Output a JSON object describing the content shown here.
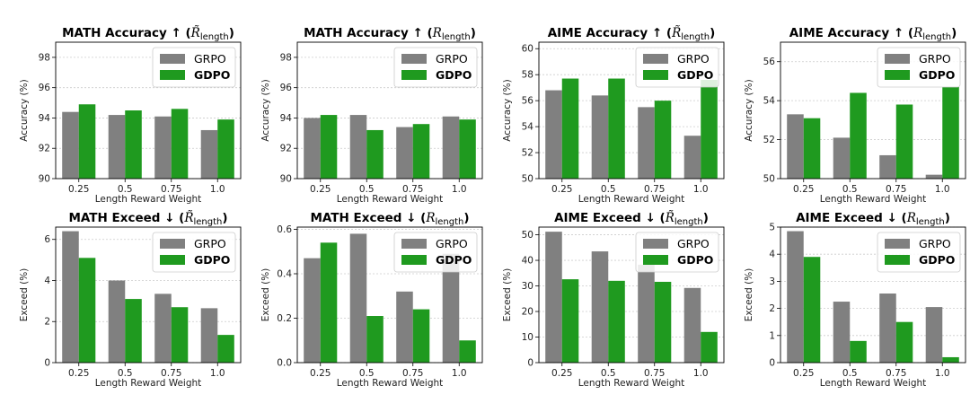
{
  "chart_data": [
    {
      "type": "bar",
      "title": "MATH Accuracy ↑",
      "title_metric": "R̃",
      "title_subscript": "length",
      "xlabel": "Length Reward Weight",
      "ylabel": "Accuracy (%)",
      "categories": [
        "0.25",
        "0.5",
        "0.75",
        "1.0"
      ],
      "ylim": [
        90,
        99
      ],
      "yticks": [
        90,
        92,
        94,
        96,
        98
      ],
      "series": [
        {
          "name": "GRPO",
          "values": [
            94.4,
            94.2,
            94.1,
            93.2
          ]
        },
        {
          "name": "GDPO",
          "values": [
            94.9,
            94.5,
            94.6,
            93.9
          ]
        }
      ],
      "legend": "top-right",
      "grid": "y"
    },
    {
      "type": "bar",
      "title": "MATH Accuracy ↑",
      "title_metric": "R",
      "title_subscript": "length",
      "xlabel": "Length Reward Weight",
      "ylabel": "Accuracy (%)",
      "categories": [
        "0.25",
        "0.5",
        "0.75",
        "1.0"
      ],
      "ylim": [
        90,
        99
      ],
      "yticks": [
        90,
        92,
        94,
        96,
        98
      ],
      "series": [
        {
          "name": "GRPO",
          "values": [
            94.0,
            94.2,
            93.4,
            94.1
          ]
        },
        {
          "name": "GDPO",
          "values": [
            94.2,
            93.2,
            93.6,
            93.9
          ]
        }
      ],
      "legend": "top-right",
      "grid": "y"
    },
    {
      "type": "bar",
      "title": "AIME Accuracy ↑",
      "title_metric": "R̃",
      "title_subscript": "length",
      "xlabel": "Length Reward Weight",
      "ylabel": "Accuracy (%)",
      "categories": [
        "0.25",
        "0.5",
        "0.75",
        "1.0"
      ],
      "ylim": [
        50,
        60.5
      ],
      "yticks": [
        50,
        52,
        54,
        56,
        58,
        60
      ],
      "series": [
        {
          "name": "GRPO",
          "values": [
            56.8,
            56.4,
            55.5,
            53.3
          ]
        },
        {
          "name": "GDPO",
          "values": [
            57.7,
            57.7,
            56.0,
            57.6
          ]
        }
      ],
      "legend": "top-right",
      "grid": "y"
    },
    {
      "type": "bar",
      "title": "AIME Accuracy ↑",
      "title_metric": "R",
      "title_subscript": "length",
      "xlabel": "Length Reward Weight",
      "ylabel": "Accuracy (%)",
      "categories": [
        "0.25",
        "0.5",
        "0.75",
        "1.0"
      ],
      "ylim": [
        50,
        57
      ],
      "yticks": [
        50,
        52,
        54,
        56
      ],
      "series": [
        {
          "name": "GRPO",
          "values": [
            53.3,
            52.1,
            51.2,
            50.2
          ]
        },
        {
          "name": "GDPO",
          "values": [
            53.1,
            54.4,
            53.8,
            54.7
          ]
        }
      ],
      "legend": "top-right",
      "grid": "y"
    },
    {
      "type": "bar",
      "title": "MATH Exceed ↓",
      "title_metric": "R̃",
      "title_subscript": "length",
      "xlabel": "Length Reward Weight",
      "ylabel": "Exceed (%)",
      "categories": [
        "0.25",
        "0.5",
        "0.75",
        "1.0"
      ],
      "ylim": [
        0,
        6.6
      ],
      "yticks": [
        0,
        2,
        4,
        6
      ],
      "series": [
        {
          "name": "GRPO",
          "values": [
            6.4,
            4.0,
            3.35,
            2.65
          ]
        },
        {
          "name": "GDPO",
          "values": [
            5.1,
            3.1,
            2.7,
            1.35
          ]
        }
      ],
      "legend": "top-right",
      "grid": "y"
    },
    {
      "type": "bar",
      "title": "MATH Exceed ↓",
      "title_metric": "R",
      "title_subscript": "length",
      "xlabel": "Length Reward Weight",
      "ylabel": "Exceed (%)",
      "categories": [
        "0.25",
        "0.5",
        "0.75",
        "1.0"
      ],
      "ylim": [
        0,
        0.61
      ],
      "yticks": [
        "0.0",
        "0.2",
        "0.4",
        "0.6"
      ],
      "series": [
        {
          "name": "GRPO",
          "values": [
            0.47,
            0.58,
            0.32,
            0.49
          ]
        },
        {
          "name": "GDPO",
          "values": [
            0.54,
            0.21,
            0.24,
            0.1
          ]
        }
      ],
      "legend": "top-right",
      "grid": "y"
    },
    {
      "type": "bar",
      "title": "AIME Exceed ↓",
      "title_metric": "R̃",
      "title_subscript": "length",
      "xlabel": "Length Reward Weight",
      "ylabel": "Exceed (%)",
      "categories": [
        "0.25",
        "0.5",
        "0.75",
        "1.0"
      ],
      "ylim": [
        0,
        53
      ],
      "yticks": [
        0,
        10,
        20,
        30,
        40,
        50
      ],
      "series": [
        {
          "name": "GRPO",
          "values": [
            51.2,
            43.5,
            38.3,
            29.2
          ]
        },
        {
          "name": "GDPO",
          "values": [
            32.6,
            32.0,
            31.6,
            12.0
          ]
        }
      ],
      "legend": "top-right",
      "grid": "y"
    },
    {
      "type": "bar",
      "title": "AIME Exceed ↓",
      "title_metric": "R",
      "title_subscript": "length",
      "xlabel": "Length Reward Weight",
      "ylabel": "Exceed (%)",
      "categories": [
        "0.25",
        "0.5",
        "0.75",
        "1.0"
      ],
      "ylim": [
        0,
        5.0
      ],
      "yticks": [
        0,
        1,
        2,
        3,
        4,
        5
      ],
      "series": [
        {
          "name": "GRPO",
          "values": [
            4.85,
            2.25,
            2.55,
            2.05
          ]
        },
        {
          "name": "GDPO",
          "values": [
            3.9,
            0.8,
            1.5,
            0.2
          ]
        }
      ],
      "legend": "top-right",
      "grid": "y"
    }
  ],
  "colors": {
    "GRPO": "#808080",
    "GDPO": "#1f9a1f",
    "grid": "#cccccc",
    "axis": "#000000"
  }
}
